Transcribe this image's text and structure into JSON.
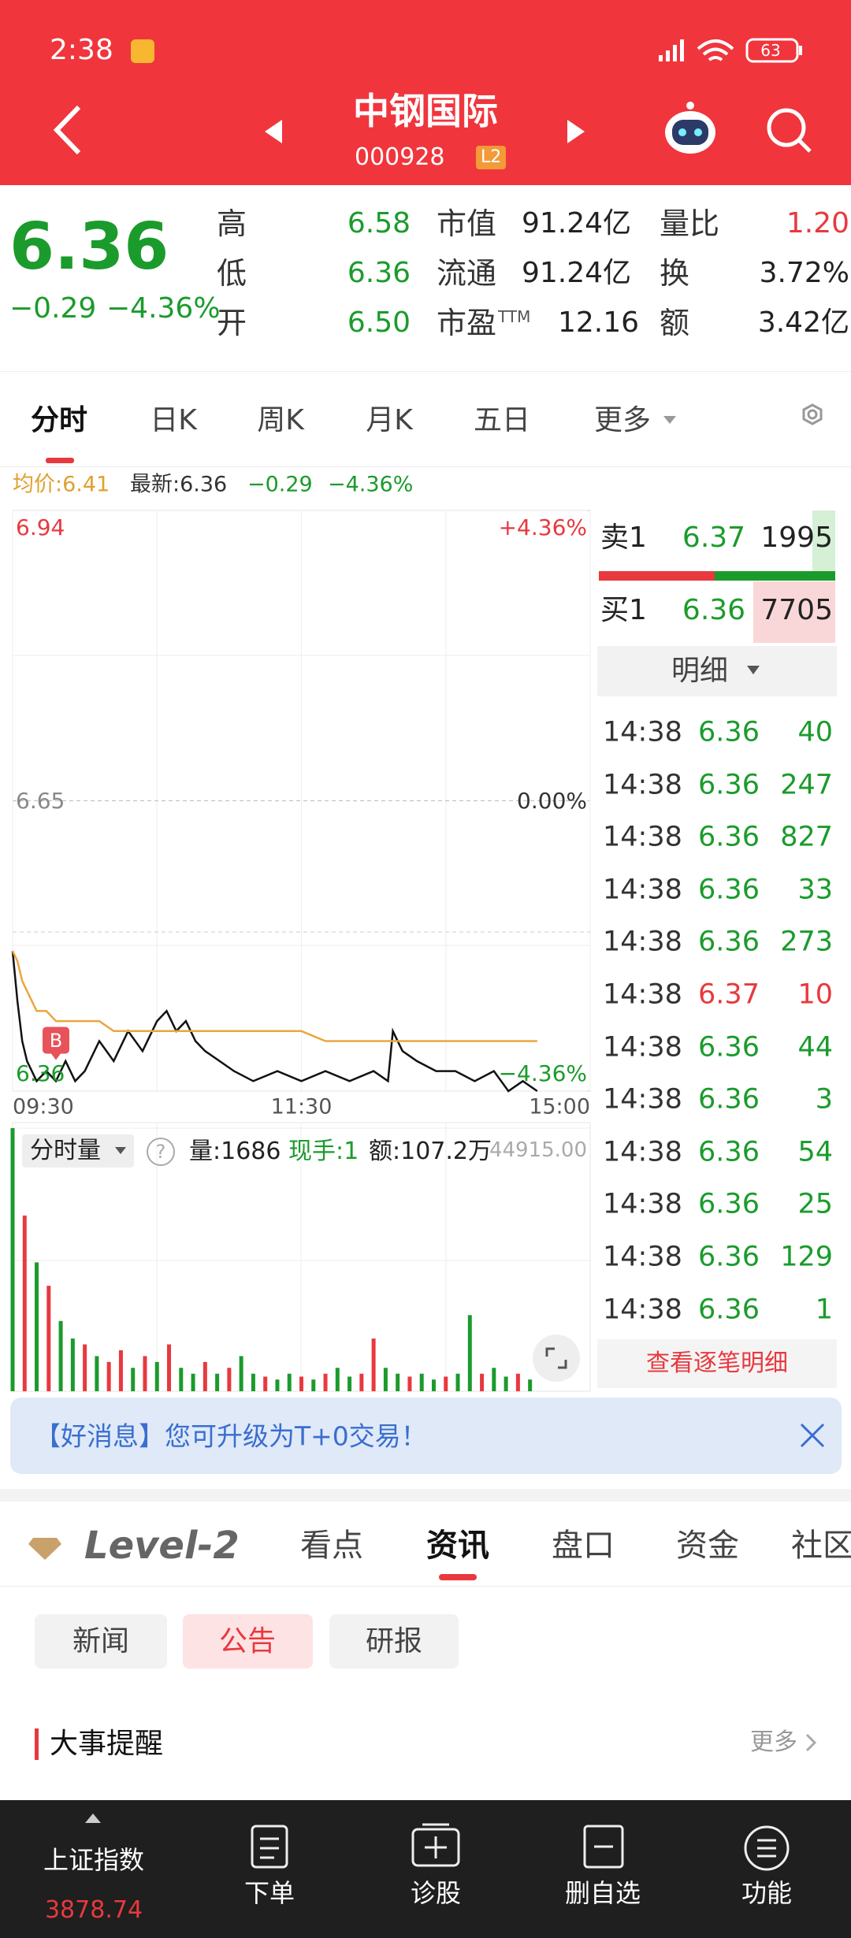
{
  "status_bar": {
    "time": "2:38",
    "battery": "63"
  },
  "header": {
    "name": "中钢国际",
    "code": "000928",
    "badge": "L2"
  },
  "quote": {
    "price": "6.36",
    "change": "−0.29",
    "change_pct": "−4.36%",
    "stats": [
      [
        {
          "label": "高",
          "value": "6.58"
        },
        {
          "label": "市值",
          "value": "91.24亿"
        },
        {
          "label": "量比",
          "value": "1.20"
        }
      ],
      [
        {
          "label": "低",
          "value": "6.36"
        },
        {
          "label": "流通",
          "value": "91.24亿"
        },
        {
          "label": "换",
          "value": "3.72%"
        }
      ],
      [
        {
          "label": "开",
          "value": "6.50"
        },
        {
          "label": "市盈",
          "suffix": "TTM",
          "value": "12.16"
        },
        {
          "label": "额",
          "value": "3.42亿"
        }
      ]
    ]
  },
  "tabs": [
    "分时",
    "日K",
    "周K",
    "月K",
    "五日",
    "更多"
  ],
  "summary": {
    "avg": "均价:6.41",
    "latest": "最新:6.36",
    "change": "−0.29",
    "change_pct": "−4.36%"
  },
  "chart_data": [
    {
      "type": "line",
      "xlim": [
        0,
        240
      ],
      "xticks": [
        {
          "value": 0,
          "label": "09:30"
        },
        {
          "value": 120,
          "label": "11:30"
        },
        {
          "value": 240,
          "label": "15:00"
        }
      ],
      "ylim": [
        6.36,
        6.94
      ],
      "yticks": [
        6.36,
        6.65,
        6.94
      ],
      "y2lim": [
        -4.36,
        4.36
      ],
      "y2ticks": [
        {
          "value": -4.36,
          "label": "−4.36%"
        },
        {
          "value": 0,
          "label": "0.00%"
        },
        {
          "value": 4.36,
          "label": "+4.36%"
        }
      ],
      "x": [
        0,
        2,
        4,
        6,
        8,
        10,
        14,
        18,
        22,
        26,
        30,
        36,
        42,
        48,
        54,
        60,
        64,
        68,
        72,
        76,
        80,
        86,
        92,
        100,
        110,
        120,
        130,
        140,
        150,
        156,
        158,
        162,
        168,
        176,
        184,
        192,
        200,
        206,
        212,
        218
      ],
      "series": [
        {
          "color": "#111111",
          "values": [
            6.5,
            6.45,
            6.41,
            6.39,
            6.38,
            6.37,
            6.38,
            6.37,
            6.39,
            6.37,
            6.38,
            6.41,
            6.39,
            6.42,
            6.4,
            6.43,
            6.44,
            6.42,
            6.43,
            6.41,
            6.4,
            6.39,
            6.38,
            6.37,
            6.38,
            6.37,
            6.38,
            6.37,
            6.38,
            6.37,
            6.42,
            6.4,
            6.39,
            6.38,
            6.38,
            6.37,
            6.38,
            6.36,
            6.37,
            6.36
          ]
        },
        {
          "color": "#eba63f",
          "values": [
            6.5,
            6.49,
            6.47,
            6.46,
            6.45,
            6.44,
            6.44,
            6.43,
            6.43,
            6.43,
            6.43,
            6.43,
            6.42,
            6.42,
            6.42,
            6.42,
            6.42,
            6.42,
            6.42,
            6.42,
            6.42,
            6.42,
            6.42,
            6.42,
            6.42,
            6.42,
            6.41,
            6.41,
            6.41,
            6.41,
            6.41,
            6.41,
            6.41,
            6.41,
            6.41,
            6.41,
            6.41,
            6.41,
            6.41,
            6.41
          ]
        }
      ],
      "annotations": [
        {
          "text": "B",
          "x": 18,
          "y": 6.41
        }
      ]
    },
    {
      "type": "bar",
      "header": {
        "selector": "分时量",
        "help": "?",
        "volume": "量:1686",
        "current": "现手:1",
        "amount": "额:107.2万"
      },
      "xlim": [
        0,
        240
      ],
      "ylim": [
        0,
        44915
      ],
      "yticks": [
        {
          "value": 44915,
          "label": "44915.00"
        }
      ],
      "x": [
        0,
        5,
        10,
        15,
        20,
        25,
        30,
        35,
        40,
        45,
        50,
        55,
        60,
        65,
        70,
        75,
        80,
        85,
        90,
        95,
        100,
        105,
        110,
        115,
        120,
        125,
        130,
        135,
        140,
        145,
        150,
        155,
        160,
        165,
        170,
        175,
        180,
        185,
        190,
        195,
        200,
        205,
        210,
        215
      ],
      "values": [
        44915,
        30000,
        22000,
        18000,
        12000,
        9000,
        8000,
        6000,
        5000,
        7000,
        4000,
        6000,
        5000,
        8000,
        4000,
        3000,
        5000,
        3000,
        4000,
        6000,
        3000,
        2500,
        2000,
        3000,
        2500,
        2000,
        3000,
        4000,
        2500,
        3000,
        9000,
        4000,
        3000,
        2500,
        3000,
        2000,
        2500,
        3000,
        13000,
        3000,
        4000,
        2500,
        3000,
        2000
      ],
      "colors": [
        "#1b9b2c",
        "#e8393e",
        "#1b9b2c",
        "#e8393e",
        "#1b9b2c",
        "#1b9b2c",
        "#e8393e",
        "#1b9b2c",
        "#e8393e",
        "#e8393e",
        "#1b9b2c",
        "#e8393e",
        "#1b9b2c",
        "#e8393e",
        "#1b9b2c",
        "#1b9b2c",
        "#e8393e",
        "#1b9b2c",
        "#e8393e",
        "#1b9b2c",
        "#1b9b2c",
        "#e8393e",
        "#1b9b2c",
        "#1b9b2c",
        "#e8393e",
        "#1b9b2c",
        "#e8393e",
        "#1b9b2c",
        "#1b9b2c",
        "#e8393e",
        "#e8393e",
        "#1b9b2c",
        "#1b9b2c",
        "#e8393e",
        "#1b9b2c",
        "#1b9b2c",
        "#e8393e",
        "#1b9b2c",
        "#1b9b2c",
        "#e8393e",
        "#1b9b2c",
        "#1b9b2c",
        "#e8393e",
        "#1b9b2c"
      ]
    }
  ],
  "order_book": {
    "ask": {
      "label": "卖1",
      "price": "6.37",
      "volume": "1995"
    },
    "bid": {
      "label": "买1",
      "price": "6.36",
      "volume": "7705"
    },
    "detail_label": "明细",
    "trades": [
      [
        "14:38",
        "6.36",
        "40"
      ],
      [
        "14:38",
        "6.36",
        "247"
      ],
      [
        "14:38",
        "6.36",
        "827"
      ],
      [
        "14:38",
        "6.36",
        "33"
      ],
      [
        "14:38",
        "6.36",
        "273"
      ],
      [
        "14:38",
        "6.37",
        "10"
      ],
      [
        "14:38",
        "6.36",
        "44"
      ],
      [
        "14:38",
        "6.36",
        "3"
      ],
      [
        "14:38",
        "6.36",
        "54"
      ],
      [
        "14:38",
        "6.36",
        "25"
      ],
      [
        "14:38",
        "6.36",
        "129"
      ],
      [
        "14:38",
        "6.36",
        "1"
      ]
    ],
    "more": "查看逐笔明细"
  },
  "banner": "【好消息】您可升级为T+0交易！",
  "content_tabs": {
    "logo": "Level-2",
    "items": [
      "看点",
      "资讯",
      "盘口",
      "资金",
      "社区"
    ]
  },
  "sub_tabs": [
    "新闻",
    "公告",
    "研报"
  ],
  "section": {
    "title": "大事提醒",
    "more": "更多"
  },
  "bottom_nav": {
    "index_name": "上证指数",
    "index_value": "3878.74",
    "items": [
      "下单",
      "诊股",
      "删自选",
      "功能"
    ]
  }
}
